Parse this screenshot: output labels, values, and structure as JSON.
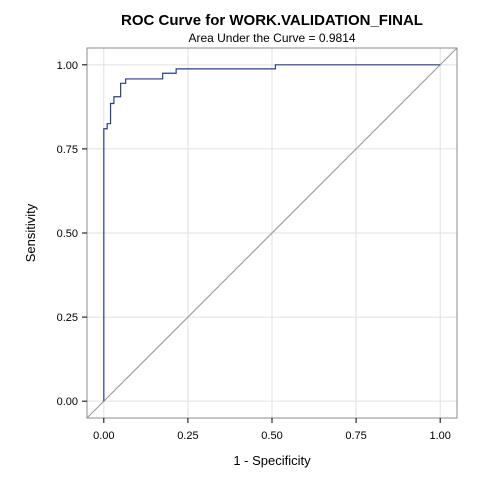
{
  "chart_data": {
    "type": "line",
    "title": "ROC Curve for WORK.VALIDATION_FINAL",
    "subtitle": "Area Under the Curve = 0.9814",
    "xlabel": "1 - Specificity",
    "ylabel": "Sensitivity",
    "xlim": [
      -0.05,
      1.05
    ],
    "ylim": [
      -0.05,
      1.05
    ],
    "x_ticks": [
      0.0,
      0.25,
      0.5,
      0.75,
      1.0
    ],
    "x_tick_labels": [
      "0.00",
      "0.25",
      "0.50",
      "0.75",
      "1.00"
    ],
    "y_ticks": [
      0.0,
      0.25,
      0.5,
      0.75,
      1.0
    ],
    "y_tick_labels": [
      "0.00",
      "0.25",
      "0.50",
      "0.75",
      "1.00"
    ],
    "grid": true,
    "series": [
      {
        "color": "#2a3d8f",
        "x": [
          0.0,
          0.0,
          0.01,
          0.01,
          0.02,
          0.02,
          0.03,
          0.03,
          0.05,
          0.05,
          0.065,
          0.065,
          0.09,
          0.09,
          0.175,
          0.175,
          0.215,
          0.215,
          0.51,
          0.51,
          1.0
        ],
        "y": [
          0.0,
          0.81,
          0.81,
          0.825,
          0.825,
          0.885,
          0.885,
          0.905,
          0.905,
          0.945,
          0.945,
          0.958,
          0.958,
          0.958,
          0.958,
          0.975,
          0.975,
          0.988,
          0.988,
          1.0,
          1.0
        ]
      },
      {
        "color": "#a0a0a0",
        "x": [
          -0.05,
          1.05
        ],
        "y": [
          -0.05,
          1.05
        ]
      }
    ]
  }
}
